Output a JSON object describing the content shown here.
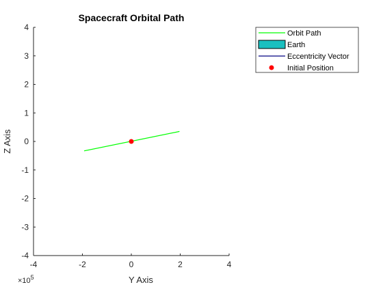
{
  "chart_data": {
    "type": "line",
    "title": "Spacecraft Orbital Path",
    "xlabel": "Y Axis",
    "ylabel": "Z Axis",
    "x_exponent_label": {
      "base": "×10",
      "exp": "5"
    },
    "xlim": [
      -4,
      4
    ],
    "ylim": [
      -4,
      4
    ],
    "x_ticks": [
      -4,
      -2,
      0,
      2,
      4
    ],
    "y_ticks": [
      -4,
      -3,
      -2,
      -1,
      0,
      1,
      2,
      3,
      4
    ],
    "x_tick_labels": [
      "-4",
      "-2",
      "0",
      "2",
      "4"
    ],
    "y_tick_labels": [
      "-4",
      "-3",
      "-2",
      "-1",
      "0",
      "1",
      "2",
      "3",
      "4"
    ],
    "grid": false,
    "legend_placement": "outside-top-right",
    "series": [
      {
        "name": "Orbit Path",
        "kind": "line",
        "color": "#00ff00",
        "x": [
          -1.93,
          1.97
        ],
        "y": [
          -0.33,
          0.35
        ]
      },
      {
        "name": "Earth",
        "kind": "patch",
        "color": "#1abfbf"
      },
      {
        "name": "Eccentricity Vector",
        "kind": "line",
        "color": "#000080"
      },
      {
        "name": "Initial Position",
        "kind": "marker",
        "color": "#ff0000",
        "x": [
          0
        ],
        "y": [
          0
        ]
      }
    ]
  }
}
